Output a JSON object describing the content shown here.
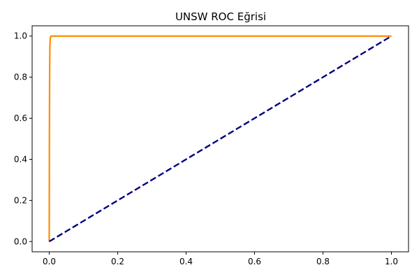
{
  "chart_data": {
    "type": "line",
    "title": "UNSW ROC Eğrisi",
    "xlabel": "",
    "ylabel": "",
    "xlim": [
      -0.05,
      1.05
    ],
    "ylim": [
      -0.05,
      1.05
    ],
    "x_ticks": [
      0.0,
      0.2,
      0.4,
      0.6,
      0.8,
      1.0
    ],
    "x_tick_labels": [
      "0.0",
      "0.2",
      "0.4",
      "0.6",
      "0.8",
      "1.0"
    ],
    "y_ticks": [
      0.0,
      0.2,
      0.4,
      0.6,
      0.8,
      1.0
    ],
    "y_tick_labels": [
      "0.0",
      "0.2",
      "0.4",
      "0.6",
      "0.8",
      "1.0"
    ],
    "grid": false,
    "legend": "none",
    "series": [
      {
        "key": "roc",
        "color": "#ff8c00",
        "style": "solid",
        "x": [
          0.0,
          0.0005,
          0.001,
          0.0015,
          0.002,
          0.003,
          0.005,
          0.01,
          0.2,
          0.5,
          1.0
        ],
        "y": [
          0.0,
          0.5,
          0.75,
          0.88,
          0.95,
          0.99,
          1.0,
          1.0,
          1.0,
          1.0,
          1.0
        ]
      },
      {
        "key": "chance",
        "color": "#000080",
        "style": "dashed",
        "x": [
          0.0,
          1.0
        ],
        "y": [
          0.0,
          1.0
        ]
      }
    ]
  }
}
